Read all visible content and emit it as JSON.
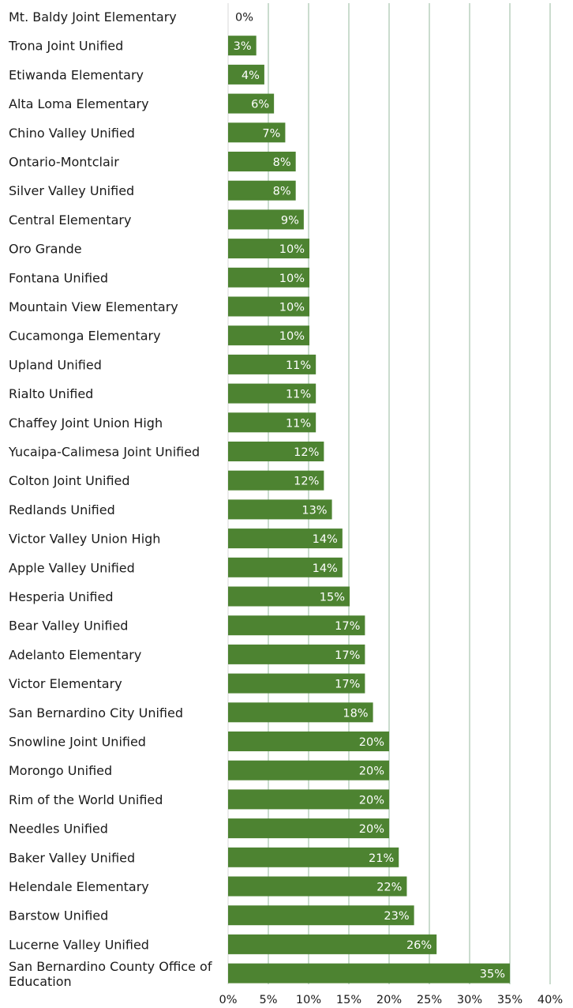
{
  "chart_data": {
    "type": "bar",
    "orientation": "horizontal",
    "categories": [
      "Mt. Baldy Joint Elementary",
      "Trona Joint Unified",
      "Etiwanda Elementary",
      "Alta Loma Elementary",
      "Chino Valley Unified",
      "Ontario-Montclair",
      "Silver Valley Unified",
      "Central Elementary",
      "Oro Grande",
      "Fontana Unified",
      "Mountain View Elementary",
      "Cucamonga Elementary",
      "Upland Unified",
      "Rialto Unified",
      "Chaffey Joint Union High",
      "Yucaipa-Calimesa Joint Unified",
      "Colton Joint Unified",
      "Redlands Unified",
      "Victor Valley Union High",
      "Apple Valley Unified",
      "Hesperia Unified",
      "Bear Valley Unified",
      "Adelanto Elementary",
      "Victor Elementary",
      "San Bernardino City Unified",
      "Snowline Joint Unified",
      "Morongo Unified",
      "Rim of the World Unified",
      "Needles Unified",
      "Baker Valley Unified",
      "Helendale Elementary",
      "Barstow Unified",
      "Lucerne Valley Unified",
      "San Bernardino County Office of Education"
    ],
    "values": [
      0,
      3.5,
      4.5,
      5.7,
      7.1,
      8.4,
      8.4,
      9.4,
      10.1,
      10.1,
      10.1,
      10.1,
      10.9,
      10.9,
      10.9,
      11.9,
      11.9,
      12.9,
      14.2,
      14.2,
      15.1,
      17,
      17,
      17,
      18,
      20,
      20,
      20,
      20,
      21.2,
      22.2,
      23.1,
      25.9,
      35
    ],
    "value_labels": [
      "0%",
      "3%",
      "4%",
      "6%",
      "7%",
      "8%",
      "8%",
      "9%",
      "10%",
      "10%",
      "10%",
      "10%",
      "11%",
      "11%",
      "11%",
      "12%",
      "12%",
      "13%",
      "14%",
      "14%",
      "15%",
      "17%",
      "17%",
      "17%",
      "18%",
      "20%",
      "20%",
      "20%",
      "20%",
      "21%",
      "22%",
      "23%",
      "26%",
      "35%"
    ],
    "xlim": [
      0,
      40
    ],
    "xticks": [
      "0%",
      "5%",
      "10%",
      "15%",
      "20%",
      "25%",
      "30%",
      "35%",
      "40%"
    ],
    "xtick_values": [
      0,
      5,
      10,
      15,
      20,
      25,
      30,
      35,
      40
    ],
    "grid": "vertical",
    "bar_color": "#4d8331",
    "grid_color": "#a8c4ae",
    "title": "",
    "xlabel": "",
    "ylabel": ""
  }
}
